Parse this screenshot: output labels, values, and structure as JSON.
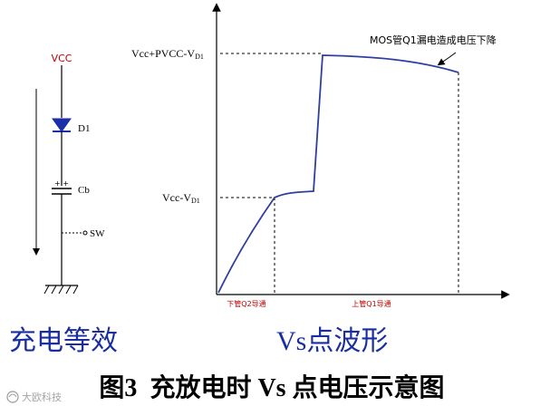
{
  "colors": {
    "stroke": "#000000",
    "waveform": "#2e3fa0",
    "vcc_label": "#c00000",
    "phase_label": "#c00000",
    "guide": "#000000"
  },
  "circuit": {
    "vcc_label": "VCC",
    "diode_label": "D1",
    "cap_label": "Cb",
    "cap_plus_top": "+  +",
    "switch_label": "SW",
    "caption": "充电等效"
  },
  "waveform": {
    "upper_level_label": "Vcc+PVCC-V",
    "upper_level_sub": "D1",
    "lower_level_label": "Vcc-V",
    "lower_level_sub": "D1",
    "annotation": "MOS管Q1漏电造成电压下降",
    "phase_low_label": "下管Q2导通",
    "phase_high_label": "上管Q1导通",
    "caption": "Vs点波形"
  },
  "figure_caption": {
    "number": "图3",
    "title": "充放电时 Vs 点电压示意图"
  },
  "watermark": "大欧科技"
}
